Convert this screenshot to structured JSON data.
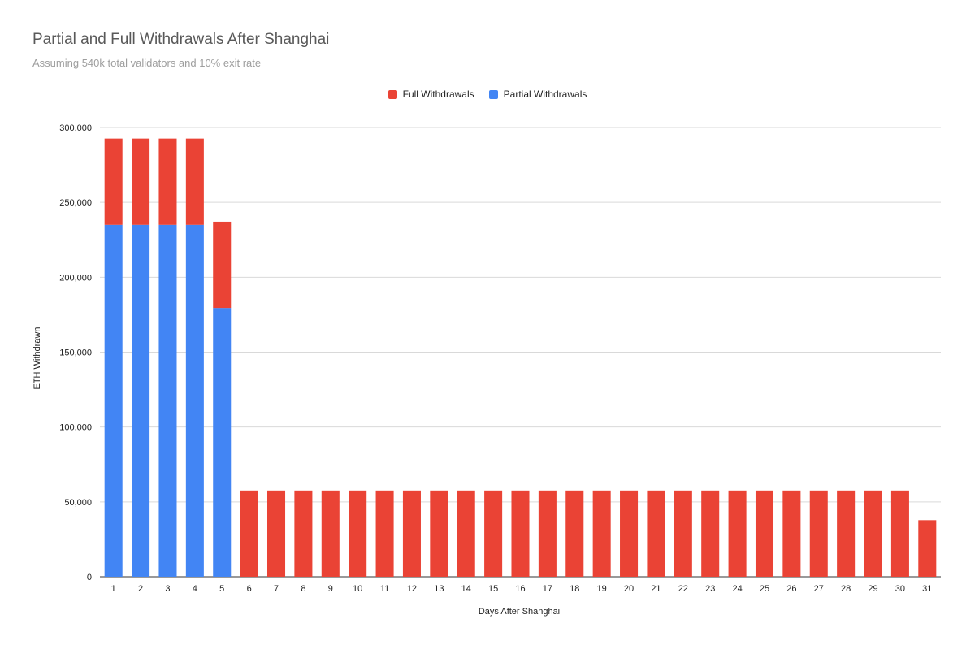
{
  "chart_data": {
    "type": "bar",
    "stacked": true,
    "title": "Partial and Full Withdrawals After Shanghai",
    "subtitle": "Assuming 540k total validators and 10% exit rate",
    "xlabel": "Days After Shanghai",
    "ylabel": "ETH Withdrawn",
    "ylim": [
      0,
      300000
    ],
    "yticks": [
      "0",
      "50,000",
      "100,000",
      "150,000",
      "200,000",
      "250,000",
      "300,000"
    ],
    "ytick_values": [
      0,
      50000,
      100000,
      150000,
      200000,
      250000,
      300000
    ],
    "grid": true,
    "legend_position": "top",
    "categories": [
      "1",
      "2",
      "3",
      "4",
      "5",
      "6",
      "7",
      "8",
      "9",
      "10",
      "11",
      "12",
      "13",
      "14",
      "15",
      "16",
      "17",
      "18",
      "19",
      "20",
      "21",
      "22",
      "23",
      "24",
      "25",
      "26",
      "27",
      "28",
      "29",
      "30",
      "31"
    ],
    "series": [
      {
        "name": "Partial Withdrawals",
        "color": "#4285f4",
        "values": [
          235000,
          235000,
          235000,
          235000,
          179500,
          0,
          0,
          0,
          0,
          0,
          0,
          0,
          0,
          0,
          0,
          0,
          0,
          0,
          0,
          0,
          0,
          0,
          0,
          0,
          0,
          0,
          0,
          0,
          0,
          0,
          0
        ]
      },
      {
        "name": "Full Withdrawals",
        "color": "#ea4335",
        "values": [
          57600,
          57600,
          57600,
          57600,
          57600,
          57600,
          57600,
          57600,
          57600,
          57600,
          57600,
          57600,
          57600,
          57600,
          57600,
          57600,
          57600,
          57600,
          57600,
          57600,
          57600,
          57600,
          57600,
          57600,
          57600,
          57600,
          57600,
          57600,
          57600,
          57600,
          37800
        ]
      }
    ],
    "legend": [
      "Full Withdrawals",
      "Partial Withdrawals"
    ]
  }
}
